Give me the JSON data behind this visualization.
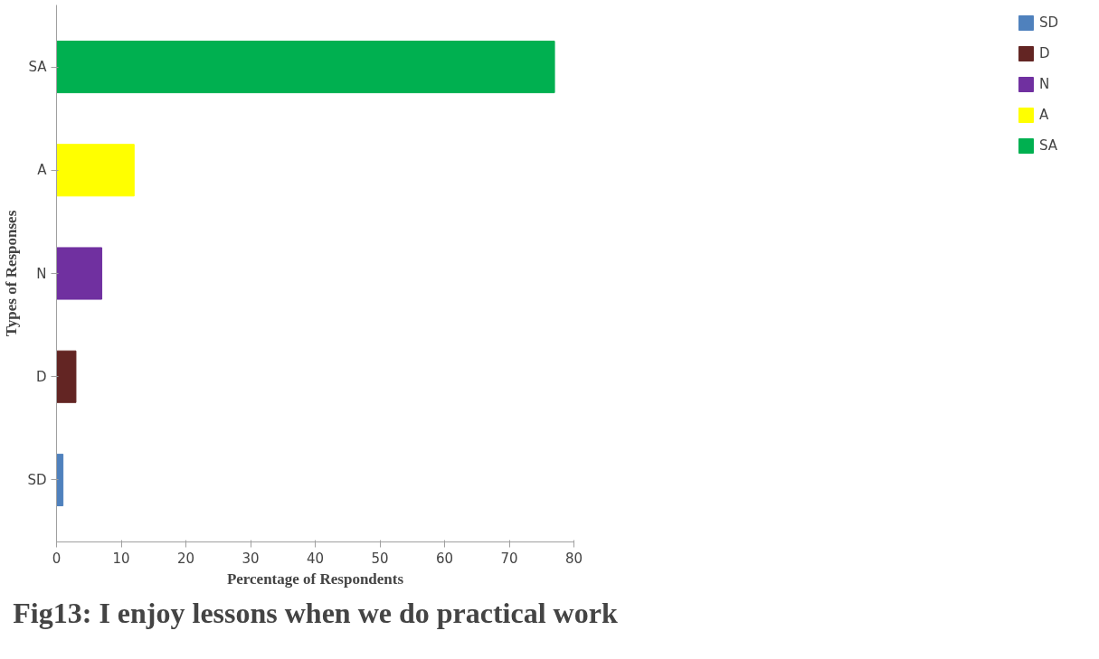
{
  "chart_data": {
    "type": "bar",
    "orientation": "horizontal",
    "title": "Fig13: I enjoy lessons when we do practical work",
    "xlabel": "Percentage of Respondents",
    "ylabel": "Types of Responses",
    "categories": [
      "SA",
      "A",
      "N",
      "D",
      "SD"
    ],
    "series": [
      {
        "name": "SD",
        "color": "#4f81bd",
        "values": [
          null,
          null,
          null,
          null,
          1
        ]
      },
      {
        "name": "D",
        "color": "#632523",
        "values": [
          null,
          null,
          null,
          3,
          null
        ]
      },
      {
        "name": "N",
        "color": "#7030a0",
        "values": [
          null,
          null,
          7,
          null,
          null
        ]
      },
      {
        "name": "A",
        "color": "#ffff00",
        "values": [
          null,
          12,
          null,
          null,
          null
        ]
      },
      {
        "name": "SA",
        "color": "#00b050",
        "values": [
          77,
          null,
          null,
          null,
          null
        ]
      }
    ],
    "xlim": [
      0,
      80
    ],
    "xticks": [
      0,
      10,
      20,
      30,
      40,
      50,
      60,
      70,
      80
    ],
    "grid": false,
    "legend": "right"
  }
}
